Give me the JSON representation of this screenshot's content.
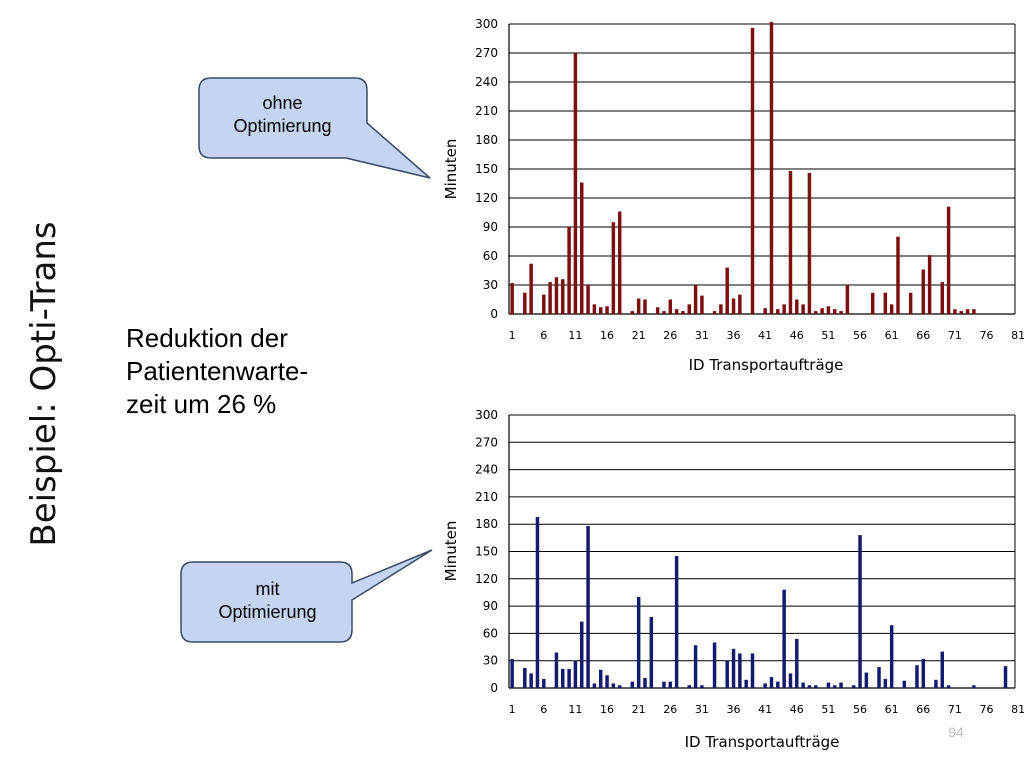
{
  "slide": {
    "title": "Beispiel: Opti-Trans",
    "reduction_lines": [
      "Reduktion der",
      "Patientenwarte-",
      "zeit um 26 %"
    ],
    "page_number": "94"
  },
  "callouts": {
    "top": {
      "lines": [
        "ohne",
        "Optimierung"
      ]
    },
    "bottom": {
      "lines": [
        "mit",
        "Optimierung"
      ]
    }
  },
  "colors": {
    "without_optimization": "#7a1010",
    "with_optimization": "#141a6e",
    "callout_fill": "#c5d4f0",
    "callout_stroke": "#3a4a66",
    "grid": "#000000",
    "page_number": "#bbbbbb"
  },
  "chart_data": [
    {
      "type": "bar",
      "series_label": "ohne Optimierung",
      "color": "#7a1010",
      "xlabel": "ID Transportaufträge",
      "ylabel": "Minuten",
      "ylim": [
        0,
        300
      ],
      "yticks": [
        0,
        30,
        60,
        90,
        120,
        150,
        180,
        210,
        240,
        270,
        300
      ],
      "xticks": [
        "1",
        "6",
        "11",
        "16",
        "21",
        "26",
        "31",
        "36",
        "41",
        "46",
        "51",
        "56",
        "61",
        "66",
        "71",
        "76",
        "81"
      ],
      "grid": true,
      "x": [
        1,
        2,
        3,
        4,
        5,
        6,
        7,
        8,
        9,
        10,
        11,
        12,
        13,
        14,
        15,
        16,
        17,
        18,
        19,
        20,
        21,
        22,
        23,
        24,
        25,
        26,
        27,
        28,
        29,
        30,
        31,
        32,
        33,
        34,
        35,
        36,
        37,
        38,
        39,
        40,
        41,
        42,
        43,
        44,
        45,
        46,
        47,
        48,
        49,
        50,
        51,
        52,
        53,
        54,
        55,
        56,
        57,
        58,
        59,
        60,
        61,
        62,
        63,
        64,
        65,
        66,
        67,
        68,
        69,
        70,
        71,
        72,
        73,
        74,
        75,
        76,
        77,
        78,
        79,
        80
      ],
      "values": [
        32,
        0,
        22,
        52,
        0,
        20,
        33,
        38,
        36,
        90,
        270,
        136,
        30,
        10,
        7,
        8,
        95,
        106,
        0,
        3,
        16,
        15,
        0,
        7,
        3,
        15,
        5,
        3,
        10,
        30,
        19,
        0,
        3,
        10,
        48,
        16,
        20,
        0,
        296,
        0,
        6,
        302,
        5,
        10,
        148,
        15,
        10,
        146,
        3,
        6,
        8,
        5,
        3,
        30,
        0,
        0,
        0,
        22,
        0,
        22,
        10,
        80,
        0,
        22,
        0,
        46,
        61,
        0,
        33,
        111,
        5,
        3,
        5,
        5,
        0,
        0,
        0,
        0,
        0,
        0
      ]
    },
    {
      "type": "bar",
      "series_label": "mit Optimierung",
      "color": "#141a6e",
      "xlabel": "ID Transportaufträge",
      "ylabel": "Minuten",
      "ylim": [
        0,
        300
      ],
      "yticks": [
        0,
        30,
        60,
        90,
        120,
        150,
        180,
        210,
        240,
        270,
        300
      ],
      "xticks": [
        "1",
        "6",
        "11",
        "16",
        "21",
        "26",
        "31",
        "36",
        "41",
        "46",
        "51",
        "56",
        "61",
        "66",
        "71",
        "76",
        "81"
      ],
      "grid": true,
      "x": [
        1,
        2,
        3,
        4,
        5,
        6,
        7,
        8,
        9,
        10,
        11,
        12,
        13,
        14,
        15,
        16,
        17,
        18,
        19,
        20,
        21,
        22,
        23,
        24,
        25,
        26,
        27,
        28,
        29,
        30,
        31,
        32,
        33,
        34,
        35,
        36,
        37,
        38,
        39,
        40,
        41,
        42,
        43,
        44,
        45,
        46,
        47,
        48,
        49,
        50,
        51,
        52,
        53,
        54,
        55,
        56,
        57,
        58,
        59,
        60,
        61,
        62,
        63,
        64,
        65,
        66,
        67,
        68,
        69,
        70,
        71,
        72,
        73,
        74,
        75,
        76,
        77,
        78,
        79,
        80
      ],
      "values": [
        32,
        0,
        22,
        16,
        188,
        10,
        0,
        39,
        21,
        21,
        30,
        73,
        178,
        5,
        20,
        14,
        5,
        3,
        0,
        7,
        100,
        11,
        78,
        0,
        7,
        7,
        145,
        0,
        3,
        47,
        3,
        0,
        50,
        0,
        30,
        43,
        38,
        9,
        38,
        0,
        5,
        12,
        7,
        108,
        16,
        54,
        6,
        3,
        3,
        0,
        6,
        3,
        6,
        0,
        3,
        168,
        17,
        0,
        23,
        10,
        69,
        0,
        8,
        0,
        25,
        32,
        0,
        9,
        40,
        3,
        0,
        0,
        0,
        3,
        0,
        0,
        0,
        0,
        24,
        0
      ]
    }
  ]
}
